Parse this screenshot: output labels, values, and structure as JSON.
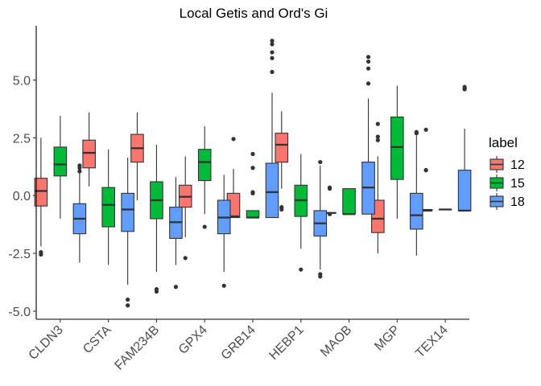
{
  "chart_data": {
    "type": "box",
    "title": "Local Getis and Ord's Gi",
    "xlabel": "",
    "ylabel": "",
    "ylim": [
      -5.35,
      7.35
    ],
    "yticks": [
      5.0,
      2.5,
      0.0,
      -2.5,
      -5.0
    ],
    "ytick_labels": [
      "5.0",
      "2.5",
      "0.0",
      "-2.5",
      "-5.0"
    ],
    "categories": [
      "CLDN3",
      "CSTA",
      "FAM234B",
      "GPX4",
      "GRB14",
      "HEBP1",
      "MAOB",
      "MGP",
      "TEX14"
    ],
    "legend": {
      "title": "label",
      "position": "right"
    },
    "grid": false,
    "series": [
      {
        "name": "12",
        "color": "#F8766D",
        "boxes": [
          {
            "min": -2.2,
            "q1": -0.45,
            "median": 0.2,
            "q3": 0.75,
            "max": 2.5,
            "outliers": [
              -2.45,
              -2.55
            ]
          },
          {
            "min": 0.4,
            "q1": 1.2,
            "median": 1.85,
            "q3": 2.4,
            "max": 3.6,
            "outliers": []
          },
          {
            "min": -0.2,
            "q1": 1.45,
            "median": 2.05,
            "q3": 2.65,
            "max": 3.6,
            "outliers": []
          },
          {
            "min": -1.8,
            "q1": -0.5,
            "median": -0.05,
            "q3": 0.45,
            "max": 1.7,
            "outliers": [
              -2.7
            ]
          },
          {
            "min": -0.95,
            "q1": -0.95,
            "median": -0.9,
            "q3": 0.1,
            "max": 1.15,
            "outliers": [
              2.45
            ]
          },
          {
            "min": 0.3,
            "q1": 1.45,
            "median": 2.2,
            "q3": 2.7,
            "max": 3.65,
            "outliers": [
              -0.5,
              -0.6
            ]
          },
          {
            "min": -0.75,
            "q1": -0.75,
            "median": -0.75,
            "q3": -0.75,
            "max": -0.75,
            "outliers": [
              0.35,
              0.3,
              -0.8
            ]
          },
          {
            "min": -2.5,
            "q1": -1.6,
            "median": -1.0,
            "q3": -0.2,
            "max": 1.7,
            "outliers": [
              2.4,
              2.55,
              3.1
            ]
          },
          {
            "min": -0.65,
            "q1": -0.65,
            "median": -0.65,
            "q3": -0.6,
            "max": -0.6,
            "outliers": [
              1.1,
              1.1,
              2.85
            ]
          }
        ]
      },
      {
        "name": "15",
        "color": "#00BA38",
        "boxes": [
          {
            "min": -1.0,
            "q1": 0.85,
            "median": 1.35,
            "q3": 2.1,
            "max": 3.45,
            "outliers": []
          },
          {
            "min": -3.0,
            "q1": -1.35,
            "median": -0.4,
            "q3": 0.35,
            "max": 2.0,
            "outliers": []
          },
          {
            "min": -3.3,
            "q1": -1.0,
            "median": -0.2,
            "q3": 0.6,
            "max": 2.2,
            "outliers": [
              -4.05,
              -4.15
            ]
          },
          {
            "min": -0.8,
            "q1": 0.65,
            "median": 1.45,
            "q3": 2.0,
            "max": 3.0,
            "outliers": [
              -1.35
            ]
          },
          {
            "min": -0.95,
            "q1": -0.95,
            "median": -0.95,
            "q3": -0.65,
            "max": -0.65,
            "outliers": [
              0.1,
              0.15,
              1.2,
              1.8
            ]
          },
          {
            "min": -2.3,
            "q1": -0.9,
            "median": -0.2,
            "q3": 0.45,
            "max": 1.8,
            "outliers": [
              -3.2
            ]
          },
          {
            "min": -0.8,
            "q1": -0.8,
            "median": -0.8,
            "q3": 0.3,
            "max": 0.3,
            "outliers": []
          },
          {
            "min": -1.0,
            "q1": 0.7,
            "median": 2.1,
            "q3": 3.4,
            "max": 4.75,
            "outliers": []
          },
          {
            "min": -0.6,
            "q1": -0.6,
            "median": -0.6,
            "q3": -0.6,
            "max": -0.6,
            "outliers": []
          }
        ]
      },
      {
        "name": "18",
        "color": "#619CFF",
        "boxes": [
          {
            "min": -2.9,
            "q1": -1.65,
            "median": -1.0,
            "q3": -0.35,
            "max": 1.0,
            "outliers": [
              1.05,
              1.2,
              1.3
            ]
          },
          {
            "min": -3.85,
            "q1": -1.55,
            "median": -0.6,
            "q3": 0.1,
            "max": 1.65,
            "outliers": [
              -4.5,
              -4.75
            ]
          },
          {
            "min": -3.0,
            "q1": -1.85,
            "median": -1.15,
            "q3": -0.5,
            "max": 0.8,
            "outliers": [
              -3.95
            ]
          },
          {
            "min": -3.3,
            "q1": -1.65,
            "median": -0.95,
            "q3": -0.2,
            "max": 0.9,
            "outliers": [
              -3.9
            ]
          },
          {
            "min": -0.95,
            "q1": -0.95,
            "median": 0.15,
            "q3": 1.4,
            "max": 4.45,
            "outliers": [
              5.35,
              5.95,
              6.2,
              6.55,
              6.7
            ]
          },
          {
            "min": -3.2,
            "q1": -1.75,
            "median": -1.2,
            "q3": -0.65,
            "max": 1.3,
            "outliers": [
              -3.4,
              -3.5,
              1.45
            ]
          },
          {
            "min": -0.8,
            "q1": -0.8,
            "median": 0.35,
            "q3": 1.45,
            "max": 4.2,
            "outliers": [
              4.85,
              5.5,
              5.8,
              6.0
            ]
          },
          {
            "min": -2.6,
            "q1": -1.45,
            "median": -0.85,
            "q3": 0.1,
            "max": 2.6,
            "outliers": [
              2.7,
              2.75
            ]
          },
          {
            "min": -0.65,
            "q1": -0.65,
            "median": -0.65,
            "q3": 1.1,
            "max": 2.9,
            "outliers": [
              4.6,
              4.65,
              4.7
            ]
          }
        ]
      }
    ]
  }
}
